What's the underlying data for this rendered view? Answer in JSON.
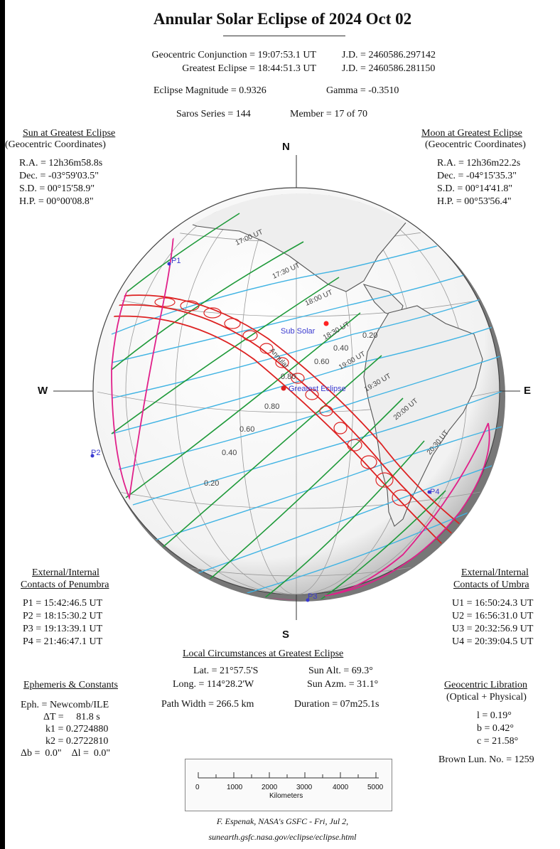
{
  "title": "Annular Solar Eclipse of  2024 Oct 02",
  "header": {
    "conj_label": "Geocentric Conjunction =",
    "conj_value": "19:07:53.1 UT",
    "conj_jd": "J.D. =  2460586.297142",
    "greatest_label": "Greatest Eclipse =",
    "greatest_value": "18:44:51.3 UT",
    "greatest_jd": "J.D. =  2460586.281150",
    "magnitude": "Eclipse Magnitude = 0.9326",
    "gamma": "Gamma = -0.3510",
    "saros": "Saros Series = 144",
    "member": "Member = 17 of 70"
  },
  "sun": {
    "heading": "Sun at Greatest Eclipse",
    "subheading": "(Geocentric Coordinates)",
    "ra": "R.A. = 12h36m58.8s",
    "dec": "Dec. = -03°59'03.5\"",
    "sd": "S.D. = 00°15'58.9\"",
    "hp": "H.P. = 00°00'08.8\""
  },
  "moon": {
    "heading": "Moon at Greatest Eclipse",
    "subheading": "(Geocentric Coordinates)",
    "ra": "R.A. = 12h36m22.2s",
    "dec": "Dec. = -04°15'35.3\"",
    "sd": "S.D. = 00°14'41.8\"",
    "hp": "H.P. = 00°53'56.4\""
  },
  "compass": {
    "n": "N",
    "s": "S",
    "w": "W",
    "e": "E"
  },
  "map": {
    "time_labels": [
      "17:00 UT",
      "17:30 UT",
      "18:00 UT",
      "18:30 UT",
      "19:00 UT",
      "19:30 UT",
      "20:00 UT",
      "20:30 UT"
    ],
    "mag_labels": [
      "0.20",
      "0.40",
      "0.60",
      "0.80",
      "0.80",
      "0.60",
      "0.40",
      "0.20"
    ],
    "sub_solar": "Sub Solar",
    "greatest_eclipse": "Greatest Eclipse",
    "annular": "Annular",
    "p1": "P1",
    "p2": "P2",
    "p3": "P3",
    "p4": "P4",
    "colors": {
      "path": "#dd2222",
      "penumbra": "#e0208a",
      "time": "#1f9a3a",
      "mag": "#3fb3e3",
      "land": "#555555"
    }
  },
  "penumbra": {
    "heading": "External/Internal",
    "heading2": "Contacts of Penumbra",
    "p1": "P1 = 15:42:46.5 UT",
    "p2": "P2 = 18:15:30.2 UT",
    "p3": "P3 = 19:13:39.1 UT",
    "p4": "P4 = 21:46:47.1 UT"
  },
  "umbra": {
    "heading": "External/Internal",
    "heading2": "Contacts of Umbra",
    "u1": "U1 = 16:50:24.3 UT",
    "u2": "U2 = 16:56:31.0 UT",
    "u3": "U3 = 20:32:56.9 UT",
    "u4": "U4 = 20:39:04.5 UT"
  },
  "local": {
    "heading": "Local Circumstances at Greatest Eclipse",
    "lat": "Lat. = 21°57.5'S",
    "long": "Long. = 114°28.2'W",
    "width": "Path Width = 266.5 km",
    "alt": "Sun Alt. = 69.3°",
    "azm": "Sun Azm. = 31.1°",
    "duration": "Duration = 07m25.1s"
  },
  "ephemeris": {
    "heading": "Ephemeris & Constants",
    "eph": "Eph. = Newcomb/ILE",
    "dt": "ΔT =     81.8 s",
    "k1": "k1 = 0.2724880",
    "k2": "k2 = 0.2722810",
    "db": "Δb =  0.0\"    Δl =  0.0\""
  },
  "libration": {
    "heading": "Geocentric Libration",
    "subheading": "(Optical + Physical)",
    "l": "l =  0.19°",
    "b": "b =  0.42°",
    "c": "c =  21.58°",
    "brown": "Brown Lun. No. = 1259"
  },
  "scale": {
    "ticks": [
      "0",
      "1000",
      "2000",
      "3000",
      "4000",
      "5000"
    ],
    "unit": "Kilometers"
  },
  "credit": {
    "author": "F. Espenak, NASA's GSFC - Fri, Jul 2,",
    "url": "sunearth.gsfc.nasa.gov/eclipse/eclipse.html"
  }
}
